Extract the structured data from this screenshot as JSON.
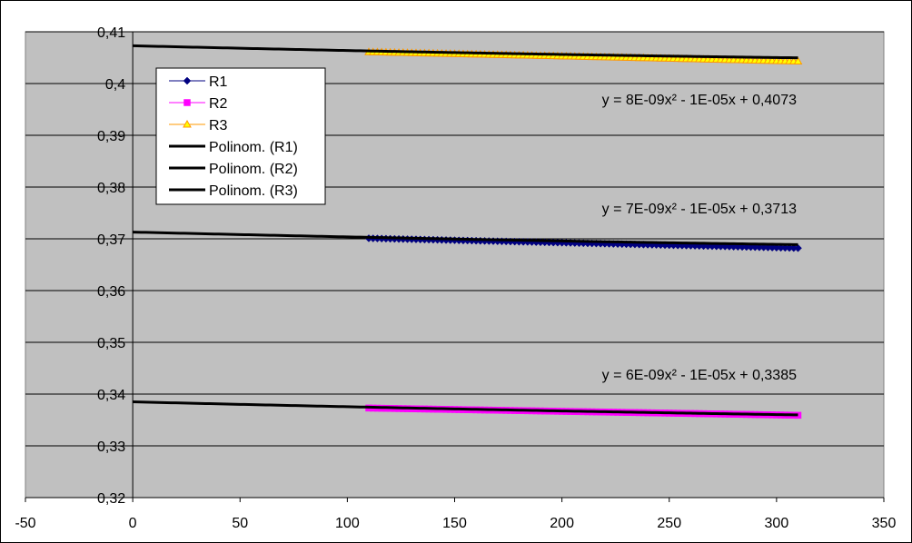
{
  "chart_data": {
    "type": "line",
    "title": "",
    "xlabel": "",
    "ylabel": "",
    "xlim": [
      -50,
      350
    ],
    "ylim": [
      0.32,
      0.41
    ],
    "x_ticks": [
      -50,
      0,
      50,
      100,
      150,
      200,
      250,
      300,
      350
    ],
    "x_tick_labels": [
      "-50",
      "0",
      "50",
      "100",
      "150",
      "200",
      "250",
      "300",
      "350"
    ],
    "y_ticks": [
      0.32,
      0.33,
      0.34,
      0.35,
      0.36,
      0.37,
      0.38,
      0.39,
      0.4,
      0.41
    ],
    "y_tick_labels": [
      "0,32",
      "0,33",
      "0,34",
      "0,35",
      "0,36",
      "0,37",
      "0,38",
      "0,39",
      "0,4",
      "0,41"
    ],
    "grid": "horizontal",
    "plot_background": "#c0c0c0",
    "legend_position": "top-left",
    "series": [
      {
        "name": "R1",
        "color": "#000080",
        "marker": "diamond",
        "x_start": 110,
        "x_end": 310,
        "x_step": 2,
        "y_start": 0.3701,
        "y_end": 0.3682
      },
      {
        "name": "R2",
        "color": "#ff00ff",
        "marker": "square",
        "x_start": 110,
        "x_end": 310,
        "x_step": 2,
        "y_start": 0.3373,
        "y_end": 0.3359
      },
      {
        "name": "R3",
        "color": "#ff9900",
        "marker_fill": "#ffff00",
        "marker": "triangle",
        "x_start": 110,
        "x_end": 310,
        "x_step": 2,
        "y_start": 0.4061,
        "y_end": 0.4043
      }
    ],
    "trendlines": [
      {
        "name": "Polinom. (R1)",
        "color": "#000000",
        "x_range": [
          0,
          310
        ],
        "coeffs": [
          7e-09,
          -1e-05,
          0.3713
        ],
        "equation": "y = 7E-09x² - 1E-05x + 0,3713"
      },
      {
        "name": "Polinom. (R2)",
        "color": "#000000",
        "x_range": [
          0,
          310
        ],
        "coeffs": [
          6e-09,
          -1e-05,
          0.3385
        ],
        "equation": "y = 6E-09x² - 1E-05x + 0,3385"
      },
      {
        "name": "Polinom. (R3)",
        "color": "#000000",
        "x_range": [
          0,
          310
        ],
        "coeffs": [
          8e-09,
          -1e-05,
          0.4073
        ],
        "equation": "y = 8E-09x² - 1E-05x + 0,4073"
      }
    ]
  }
}
